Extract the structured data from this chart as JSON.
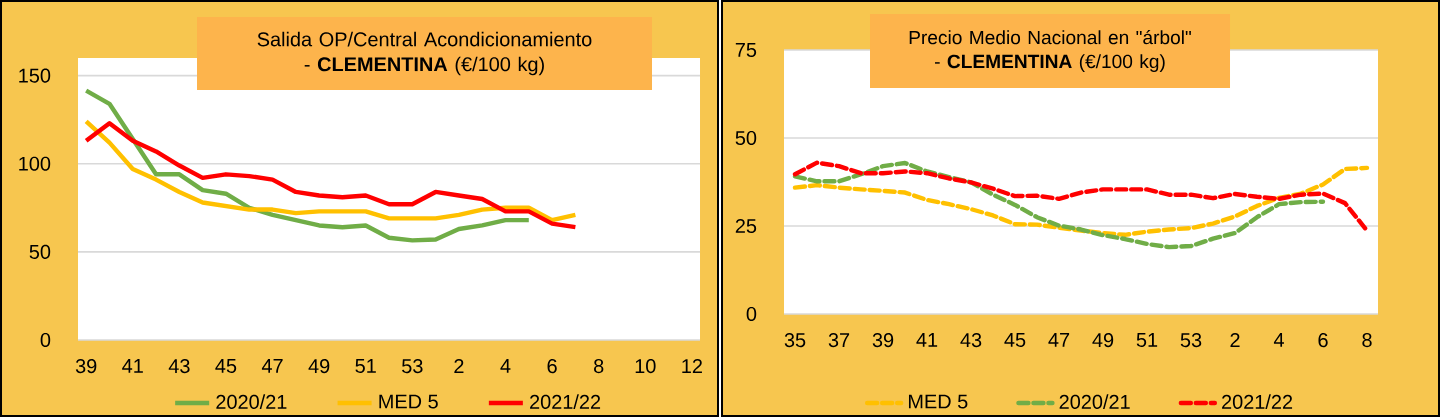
{
  "chart_data": [
    {
      "type": "line",
      "title": "Salida OP/Central Acondicionamiento - **CLEMENTINA** (€/100 kg)",
      "categories": [
        "39",
        null,
        "41",
        null,
        "43",
        null,
        "45",
        null,
        "47",
        null,
        "49",
        null,
        "51",
        null,
        "53",
        null,
        "2",
        null,
        "4",
        null,
        "6",
        null,
        "8",
        null,
        "10",
        null,
        "12"
      ],
      "ylim": [
        0,
        160
      ],
      "yticks": [
        0,
        50,
        100,
        150
      ],
      "grid": "y",
      "legend": "bottom",
      "line_style": "solid",
      "series": [
        {
          "name": "2020/21",
          "color": "#70ad47",
          "values": [
            141.5,
            134,
            114,
            94,
            94,
            85,
            83,
            75,
            71,
            68,
            65,
            64,
            65,
            58,
            56.5,
            57,
            63,
            65,
            68,
            68,
            null,
            null,
            null,
            null,
            null,
            null,
            null
          ]
        },
        {
          "name": "MED 5",
          "color": "#ffc000",
          "values": [
            124,
            112,
            97,
            91,
            84,
            78,
            76,
            74,
            74,
            72,
            73,
            73,
            73,
            69,
            69,
            69,
            71,
            74,
            75,
            75,
            68,
            71,
            null,
            null,
            null,
            null,
            null
          ]
        },
        {
          "name": "2021/22",
          "color": "#ff0000",
          "values": [
            113,
            123,
            113,
            107,
            99,
            92,
            94,
            93,
            91,
            84,
            82,
            81,
            82,
            77,
            77,
            84,
            82,
            80,
            73,
            73,
            66,
            64,
            null,
            null,
            null,
            null,
            null
          ]
        }
      ]
    },
    {
      "type": "line",
      "title": "Precio Medio Nacional en \"árbol\" - **CLEMENTINA**  (€/100 kg)",
      "categories": [
        "35",
        null,
        "37",
        null,
        "39",
        null,
        "41",
        null,
        "43",
        null,
        "45",
        null,
        "47",
        null,
        "49",
        null,
        "51",
        null,
        "53",
        null,
        "2",
        null,
        "4",
        null,
        "6",
        null,
        "8"
      ],
      "ylim": [
        0,
        75
      ],
      "yticks": [
        0,
        25,
        50,
        75
      ],
      "grid": "y",
      "legend": "bottom",
      "line_style": "dashed",
      "series": [
        {
          "name": "MED 5",
          "color": "#ffc000",
          "values": [
            35.9,
            36.6,
            35.9,
            35.4,
            35,
            34.5,
            32.4,
            31.2,
            29.8,
            28,
            25.5,
            25.4,
            24.5,
            23.7,
            23,
            22.5,
            23.4,
            24,
            24.4,
            25.7,
            27.7,
            30.7,
            33,
            34.2,
            36.8,
            41.2,
            41.5
          ]
        },
        {
          "name": "2020/21",
          "color": "#70ad47",
          "values": [
            39.1,
            37.7,
            37.7,
            39.7,
            42,
            42.9,
            40.5,
            38.9,
            37.4,
            33.9,
            31,
            27.5,
            25.1,
            24,
            22.4,
            21.3,
            19.9,
            19,
            19.3,
            21.4,
            23,
            27.5,
            31.2,
            31.8,
            31.9,
            null,
            null
          ]
        },
        {
          "name": "2021/22",
          "color": "#ff0000",
          "values": [
            39.7,
            43,
            42,
            40,
            40,
            40.5,
            40,
            38.5,
            37.4,
            35.6,
            33.5,
            33.6,
            32.7,
            34.5,
            35.4,
            35.4,
            35.4,
            33.9,
            33.9,
            32.9,
            34.1,
            33.3,
            32.7,
            33.9,
            34.2,
            31.5,
            23.7
          ]
        }
      ]
    }
  ]
}
